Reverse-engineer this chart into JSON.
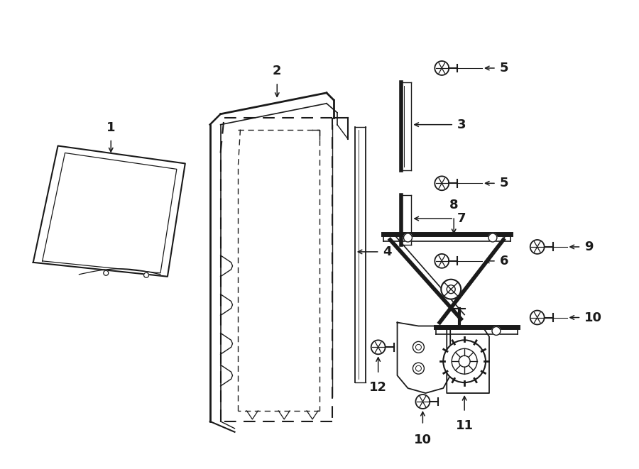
{
  "bg_color": "#ffffff",
  "line_color": "#1a1a1a",
  "figsize": [
    9.0,
    6.61
  ],
  "dpi": 100
}
